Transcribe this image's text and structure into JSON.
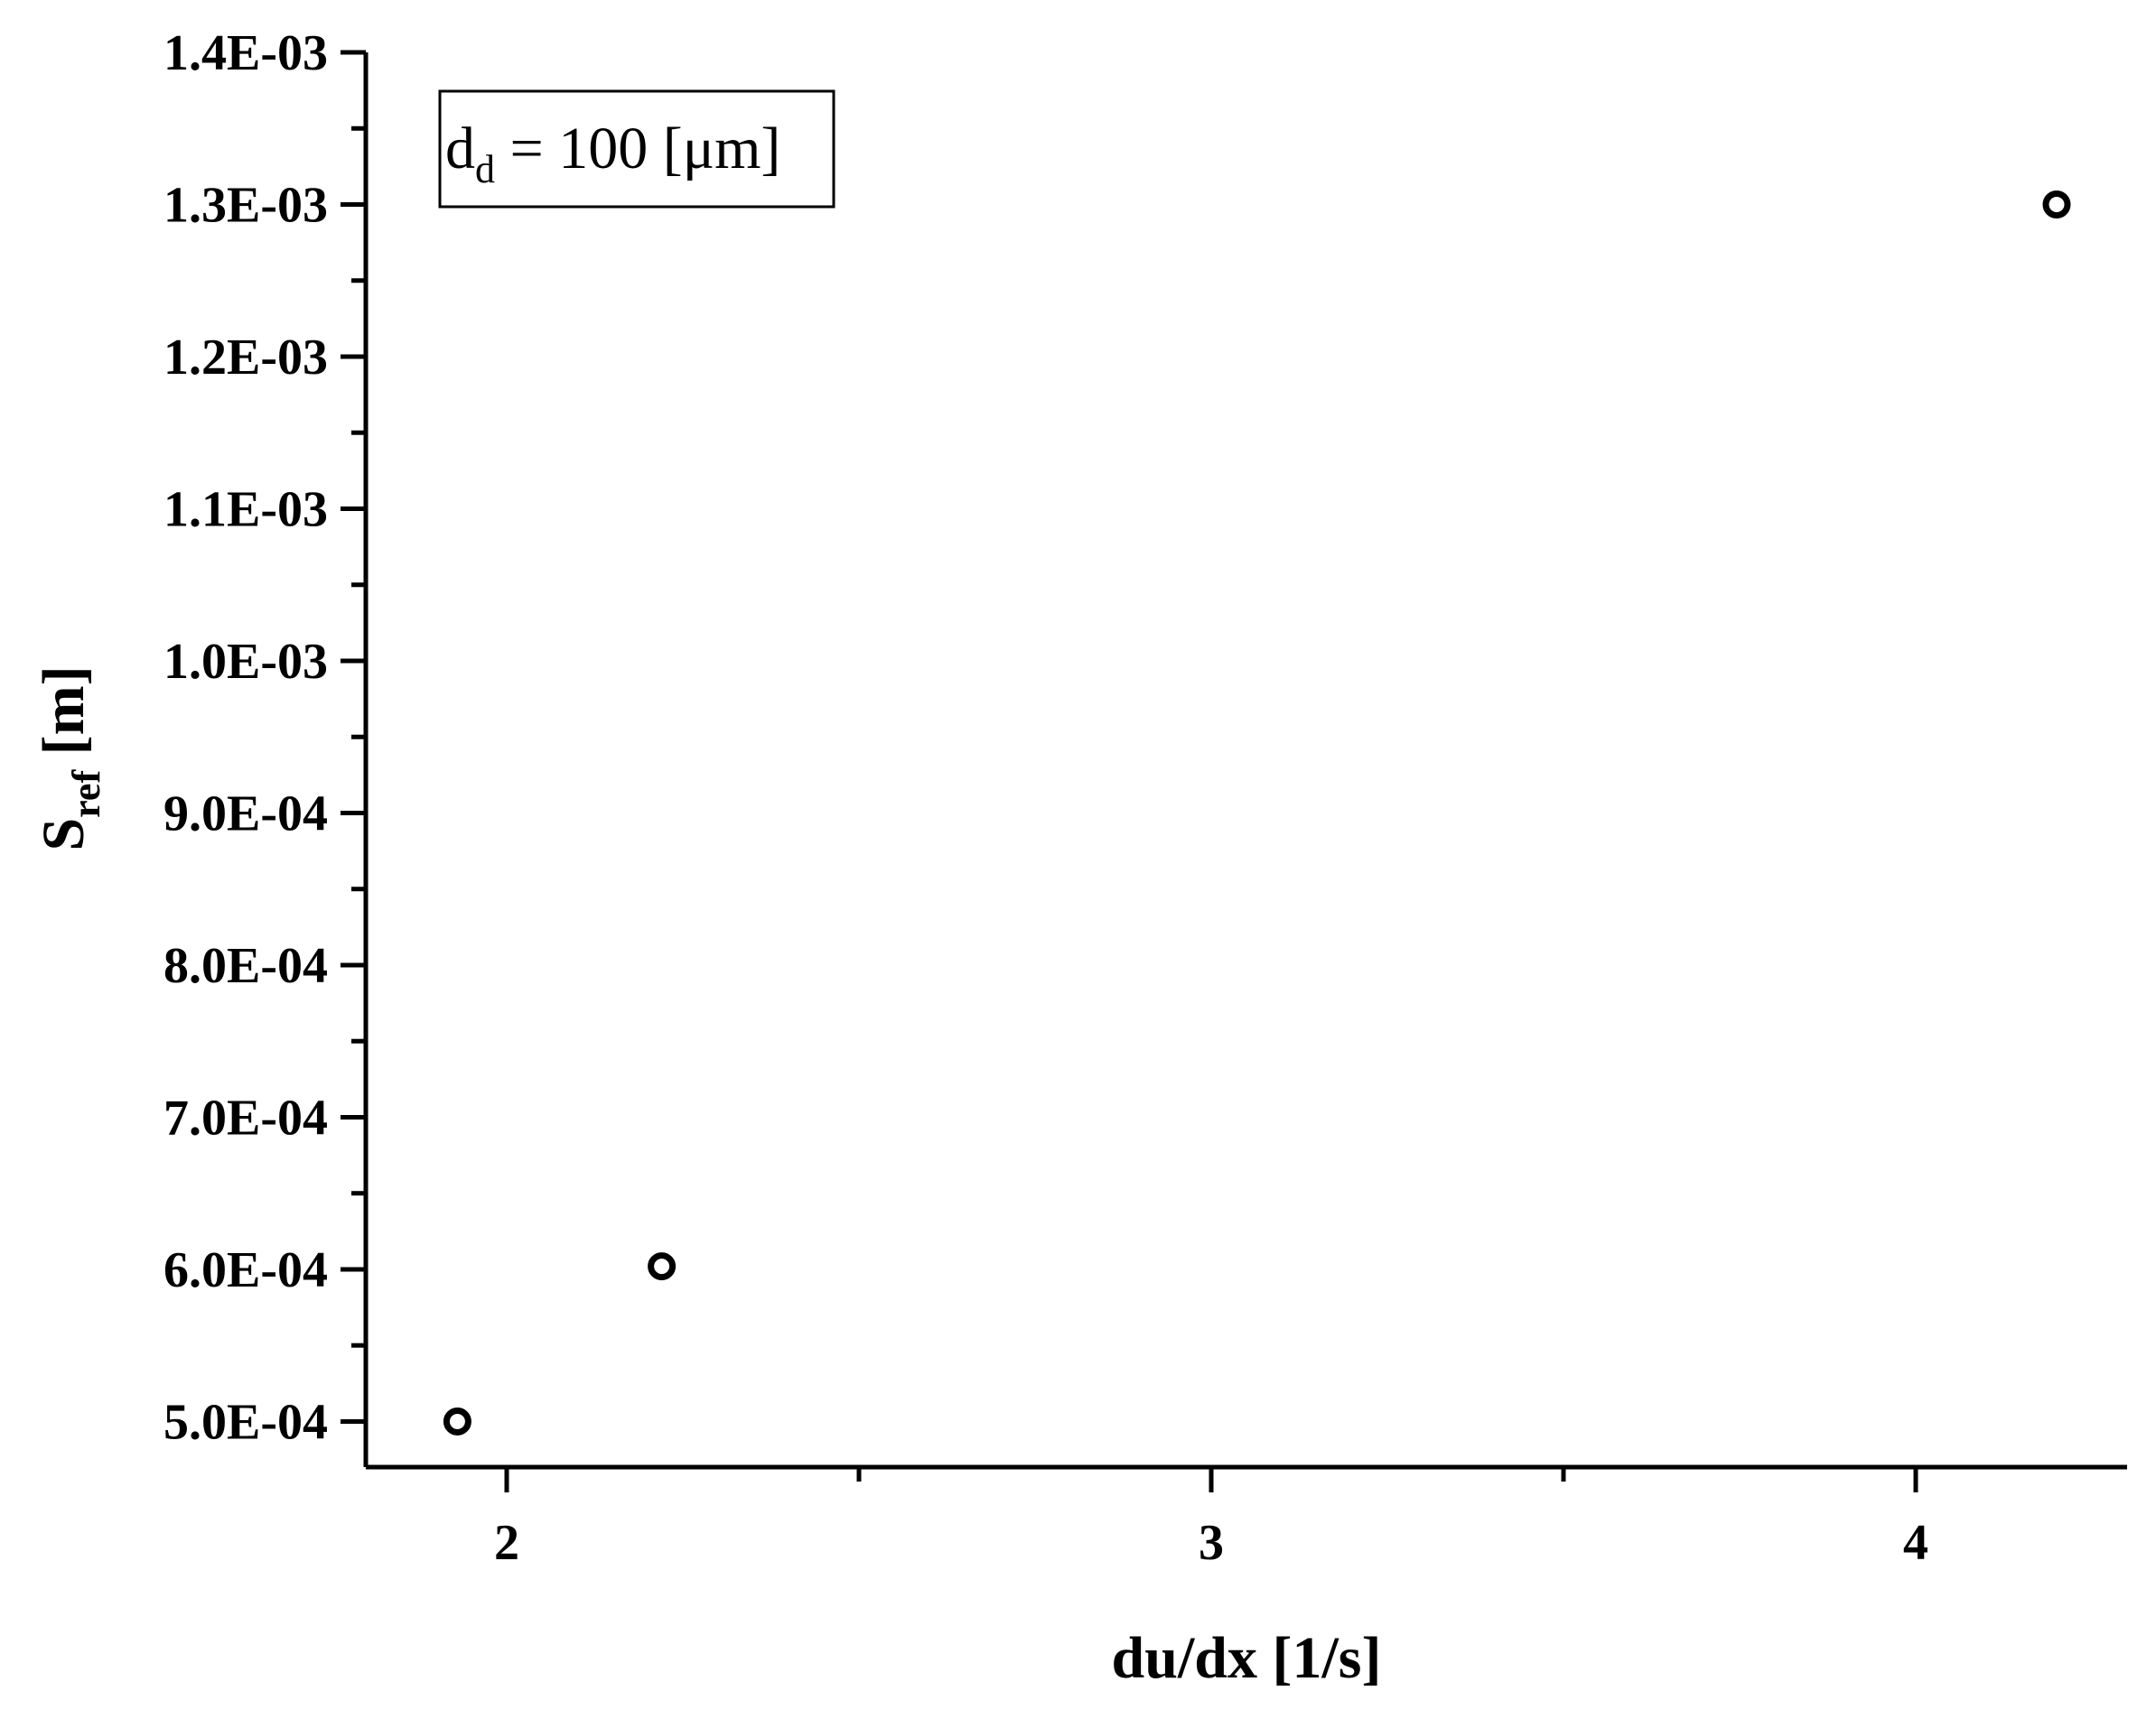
{
  "chart_data": {
    "type": "scatter",
    "title": "",
    "xlabel": "du/dx [1/s]",
    "ylabel_main": "S",
    "ylabel_sub": "ref",
    "ylabel_unit": " [m]",
    "xlim": [
      1.8,
      4.3
    ],
    "ylim": [
      0.00047,
      0.0014
    ],
    "x_ticks": [
      {
        "value": 2,
        "label": "2"
      },
      {
        "value": 3,
        "label": "3"
      },
      {
        "value": 4,
        "label": "4"
      }
    ],
    "x_minor_ticks": [
      2.5,
      3.5
    ],
    "y_ticks": [
      {
        "value": 0.0005,
        "label": "5.0E-04"
      },
      {
        "value": 0.0006,
        "label": "6.0E-04"
      },
      {
        "value": 0.0007,
        "label": "7.0E-04"
      },
      {
        "value": 0.0008,
        "label": "8.0E-04"
      },
      {
        "value": 0.0009,
        "label": "9.0E-04"
      },
      {
        "value": 0.001,
        "label": "1.0E-03"
      },
      {
        "value": 0.0011,
        "label": "1.1E-03"
      },
      {
        "value": 0.0012,
        "label": "1.2E-03"
      },
      {
        "value": 0.0013,
        "label": "1.3E-03"
      },
      {
        "value": 0.0014,
        "label": "1.4E-03"
      }
    ],
    "y_minor_ticks": [
      0.00055,
      0.00065,
      0.00075,
      0.00085,
      0.00095,
      0.00105,
      0.00115,
      0.00125,
      0.00135
    ],
    "grid": false,
    "series": [
      {
        "marker": "open-circle",
        "color": "#000000",
        "points": [
          {
            "x": 1.93,
            "y": 0.0005
          },
          {
            "x": 2.22,
            "y": 0.000602
          },
          {
            "x": 4.2,
            "y": 0.0013
          }
        ]
      }
    ],
    "annotation": {
      "main": "d",
      "sub": "d",
      "rest": " = 100 [μm]",
      "placement": "top-left"
    }
  }
}
